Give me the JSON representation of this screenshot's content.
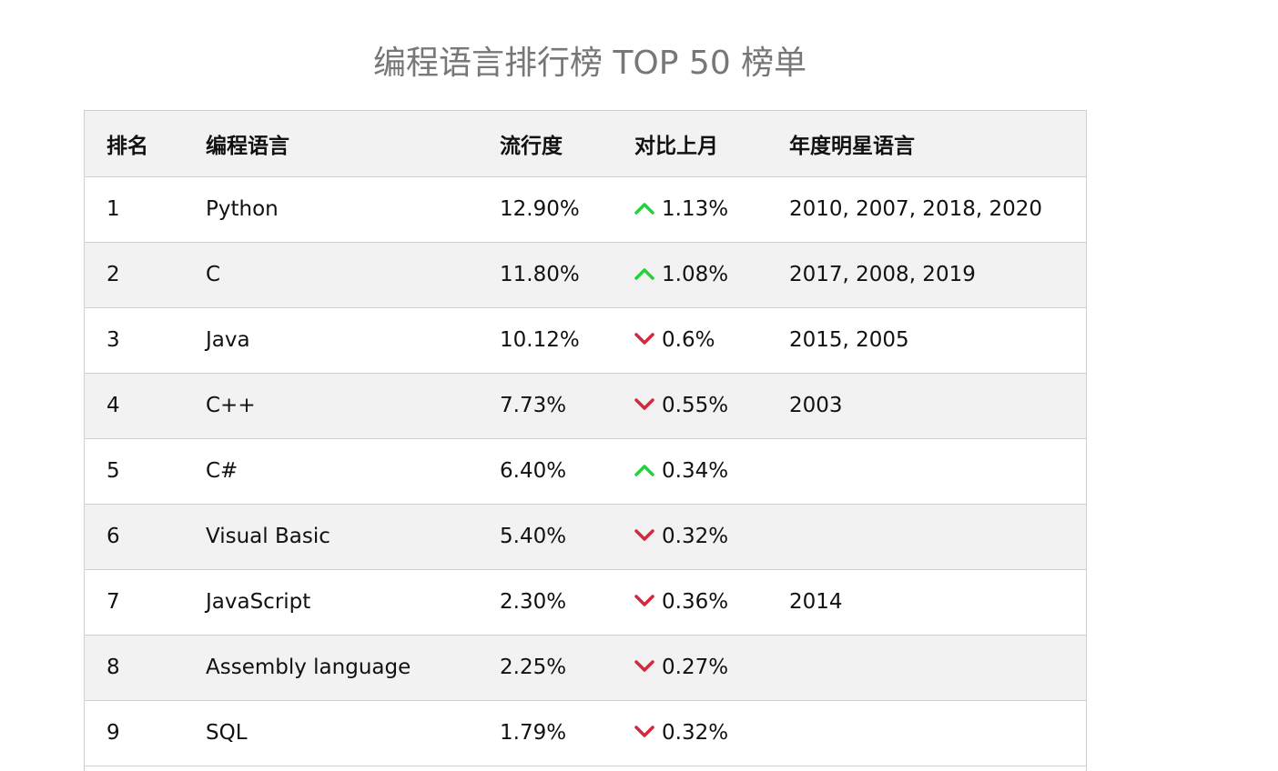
{
  "page": {
    "title": "编程语言排行榜 TOP 50 榜单"
  },
  "colors": {
    "up": "#22d23a",
    "down": "#d3283e"
  },
  "table": {
    "headers": [
      "排名",
      "编程语言",
      "流行度",
      "对比上月",
      "年度明星语言"
    ],
    "rows": [
      {
        "rank": "1",
        "language": "Python",
        "popularity": "12.90%",
        "direction": "up",
        "change": "1.13%",
        "star_years": "2010, 2007, 2018, 2020"
      },
      {
        "rank": "2",
        "language": "C",
        "popularity": "11.80%",
        "direction": "up",
        "change": "1.08%",
        "star_years": "2017, 2008, 2019"
      },
      {
        "rank": "3",
        "language": "Java",
        "popularity": "10.12%",
        "direction": "down",
        "change": "0.6%",
        "star_years": "2015, 2005"
      },
      {
        "rank": "4",
        "language": "C++",
        "popularity": "7.73%",
        "direction": "down",
        "change": "0.55%",
        "star_years": "2003"
      },
      {
        "rank": "5",
        "language": "C#",
        "popularity": "6.40%",
        "direction": "up",
        "change": "0.34%",
        "star_years": ""
      },
      {
        "rank": "6",
        "language": "Visual Basic",
        "popularity": "5.40%",
        "direction": "down",
        "change": "0.32%",
        "star_years": ""
      },
      {
        "rank": "7",
        "language": "JavaScript",
        "popularity": "2.30%",
        "direction": "down",
        "change": "0.36%",
        "star_years": "2014"
      },
      {
        "rank": "8",
        "language": "Assembly language",
        "popularity": "2.25%",
        "direction": "down",
        "change": "0.27%",
        "star_years": ""
      },
      {
        "rank": "9",
        "language": "SQL",
        "popularity": "1.79%",
        "direction": "down",
        "change": "0.32%",
        "star_years": ""
      }
    ]
  }
}
